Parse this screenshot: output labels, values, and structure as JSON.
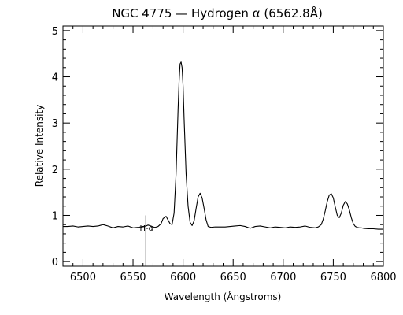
{
  "chart_data": {
    "type": "line",
    "title": "NGC 4775 — Hydrogen α (6562.8Å)",
    "xlabel": "Wavelength (Ångstroms)",
    "ylabel": "Relative Intensity",
    "xlim": [
      6480,
      6800
    ],
    "ylim": [
      -0.1,
      5.1
    ],
    "xticks": [
      6500,
      6550,
      6600,
      6650,
      6700,
      6750,
      6800
    ],
    "yticks": [
      0,
      1,
      2,
      3,
      4,
      5
    ],
    "grid": false,
    "series": [
      {
        "x": [
          6480,
          6485,
          6490,
          6495,
          6500,
          6505,
          6510,
          6515,
          6520,
          6525,
          6530,
          6535,
          6540,
          6545,
          6550,
          6555,
          6560,
          6563,
          6565,
          6568,
          6570,
          6572,
          6575,
          6578,
          6580,
          6583,
          6585,
          6587,
          6589,
          6591,
          6593,
          6595,
          6596,
          6597,
          6598,
          6599,
          6600,
          6601,
          6603,
          6605,
          6607,
          6609,
          6611,
          6613,
          6615,
          6617,
          6619,
          6621,
          6623,
          6625,
          6628,
          6632,
          6637,
          6642,
          6647,
          6652,
          6657,
          6662,
          6667,
          6672,
          6677,
          6682,
          6687,
          6692,
          6697,
          6702,
          6707,
          6712,
          6717,
          6722,
          6727,
          6732,
          6735,
          6738,
          6740,
          6742,
          6744,
          6746,
          6748,
          6750,
          6752,
          6754,
          6756,
          6758,
          6760,
          6762,
          6764,
          6766,
          6768,
          6770,
          6772,
          6774,
          6776,
          6778,
          6780,
          6785,
          6790,
          6795,
          6800
        ],
        "y": [
          0.76,
          0.76,
          0.77,
          0.75,
          0.76,
          0.77,
          0.76,
          0.77,
          0.8,
          0.77,
          0.73,
          0.76,
          0.75,
          0.77,
          0.73,
          0.74,
          0.76,
          0.77,
          0.79,
          0.77,
          0.75,
          0.74,
          0.76,
          0.82,
          0.93,
          0.98,
          0.9,
          0.82,
          0.8,
          1.05,
          1.9,
          3.3,
          3.9,
          4.28,
          4.32,
          4.2,
          3.8,
          3.1,
          1.9,
          1.2,
          0.85,
          0.78,
          0.88,
          1.15,
          1.4,
          1.48,
          1.38,
          1.15,
          0.9,
          0.76,
          0.74,
          0.75,
          0.75,
          0.75,
          0.76,
          0.77,
          0.78,
          0.76,
          0.72,
          0.76,
          0.77,
          0.75,
          0.73,
          0.75,
          0.74,
          0.73,
          0.75,
          0.74,
          0.75,
          0.77,
          0.74,
          0.73,
          0.75,
          0.8,
          0.92,
          1.1,
          1.3,
          1.44,
          1.47,
          1.38,
          1.18,
          1.0,
          0.95,
          1.05,
          1.22,
          1.3,
          1.25,
          1.12,
          0.95,
          0.82,
          0.76,
          0.74,
          0.73,
          0.73,
          0.72,
          0.71,
          0.71,
          0.7,
          0.7
        ]
      }
    ],
    "annotations": [
      {
        "text": "H-α",
        "x": 6562.8,
        "y": 1.0
      }
    ]
  }
}
